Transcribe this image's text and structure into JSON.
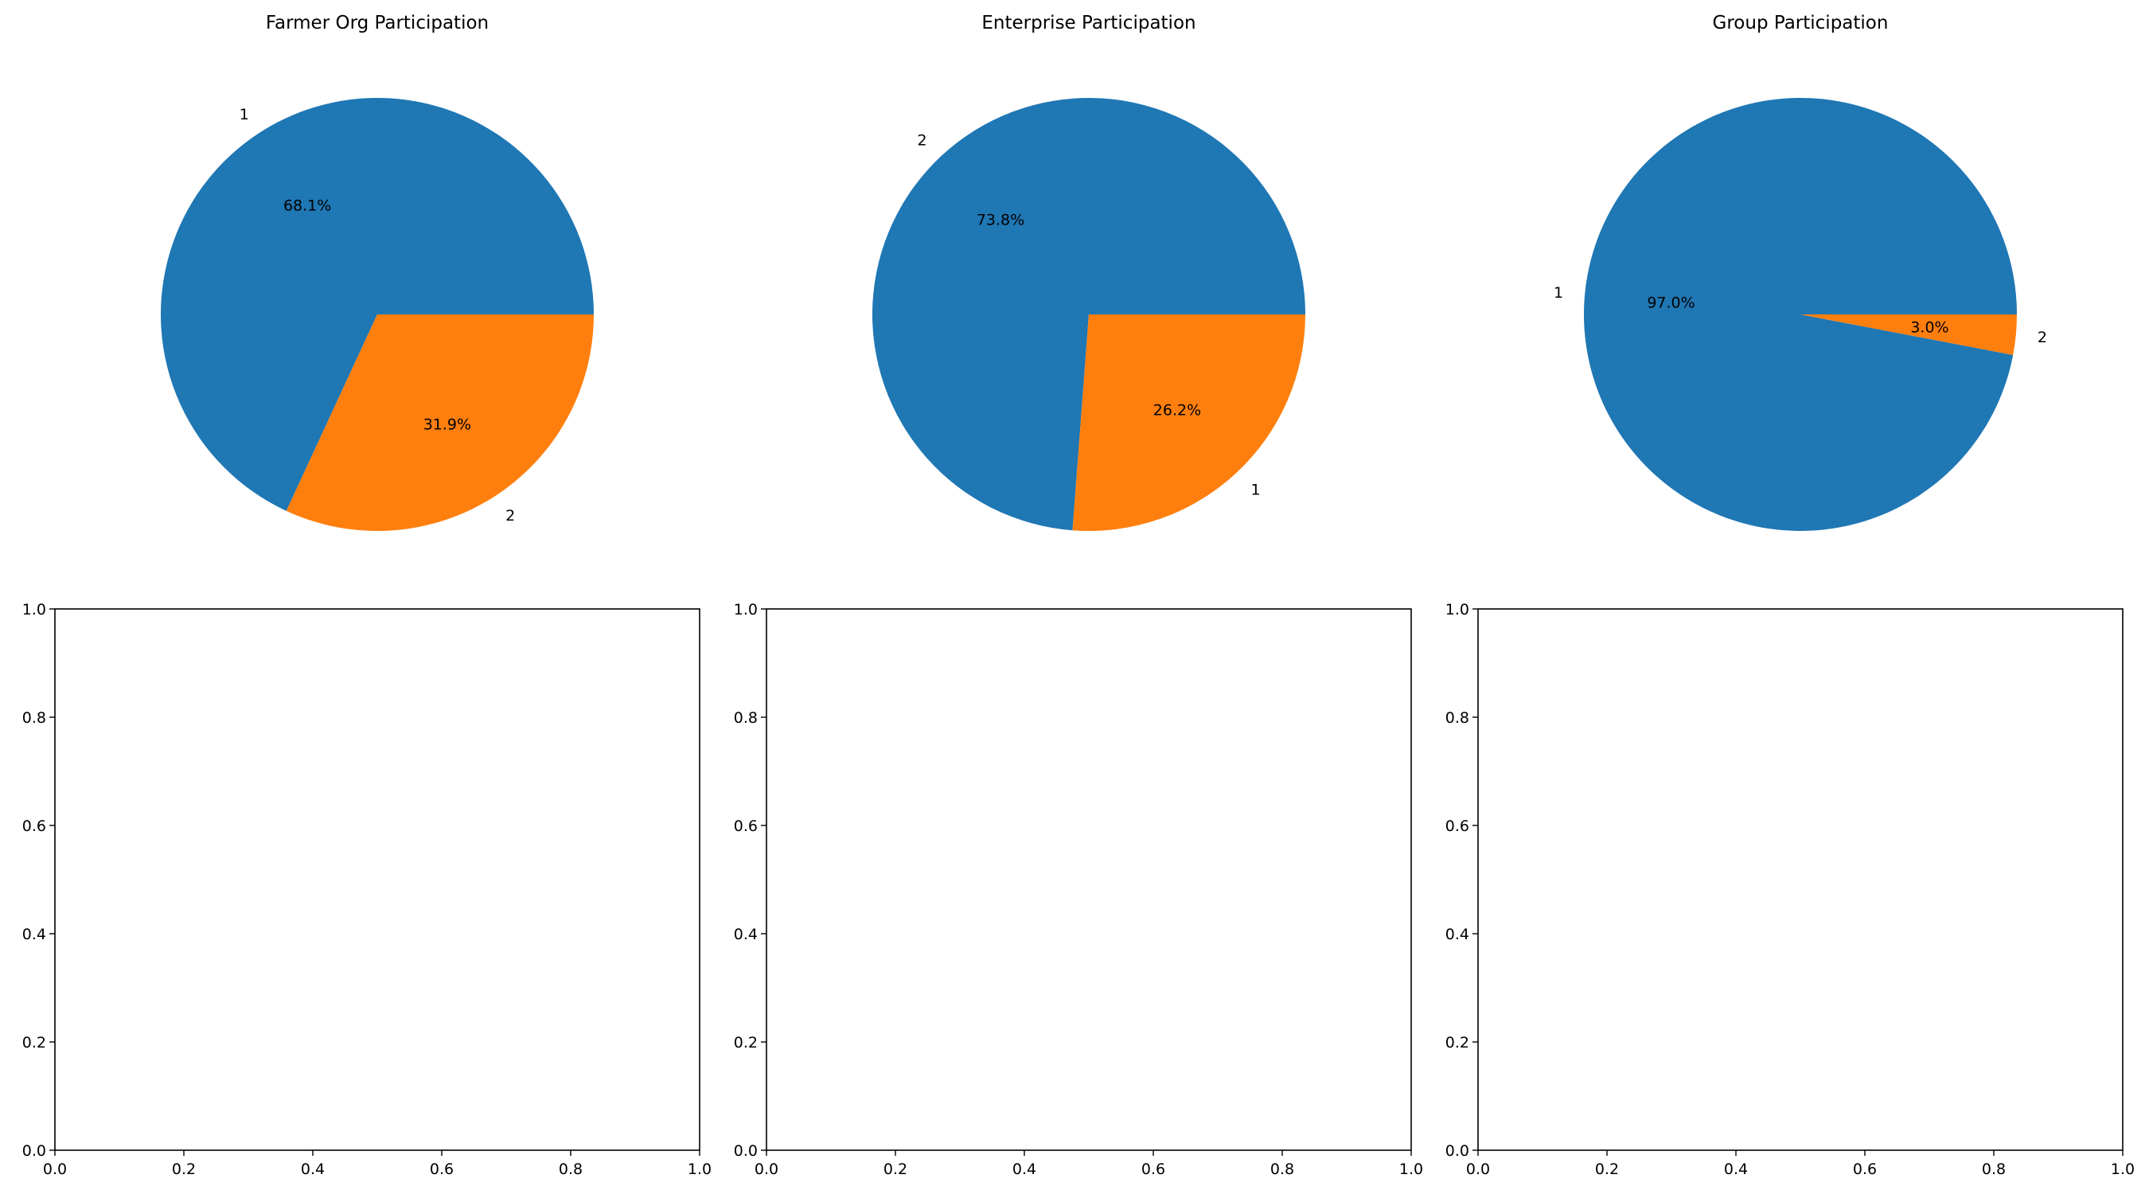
{
  "chart_data": [
    {
      "type": "pie",
      "title": "Farmer Org Participation",
      "colors": [
        "#1f77b4",
        "#ff7f0e"
      ],
      "slices": [
        {
          "label": "1",
          "pct_label": "68.1%",
          "value": 68.1
        },
        {
          "label": "2",
          "pct_label": "31.9%",
          "value": 31.9
        }
      ],
      "start_angle_deg": 0,
      "direction": "counterclockwise"
    },
    {
      "type": "pie",
      "title": "Enterprise Participation",
      "colors": [
        "#1f77b4",
        "#ff7f0e"
      ],
      "slices": [
        {
          "label": "2",
          "pct_label": "73.8%",
          "value": 73.8
        },
        {
          "label": "1",
          "pct_label": "26.2%",
          "value": 26.2
        }
      ],
      "start_angle_deg": 0,
      "direction": "counterclockwise"
    },
    {
      "type": "pie",
      "title": "Group Participation",
      "colors": [
        "#1f77b4",
        "#ff7f0e"
      ],
      "slices": [
        {
          "label": "1",
          "pct_label": "97.0%",
          "value": 97.0
        },
        {
          "label": "2",
          "pct_label": "3.0%",
          "value": 3.0
        }
      ],
      "start_angle_deg": 0,
      "direction": "counterclockwise"
    },
    {
      "type": "scatter",
      "title": "",
      "xlim": [
        0,
        1
      ],
      "ylim": [
        0,
        1
      ],
      "xticks": [
        "0.0",
        "0.2",
        "0.4",
        "0.6",
        "0.8",
        "1.0"
      ],
      "yticks": [
        "0.0",
        "0.2",
        "0.4",
        "0.6",
        "0.8",
        "1.0"
      ],
      "series": []
    },
    {
      "type": "scatter",
      "title": "",
      "xlim": [
        0,
        1
      ],
      "ylim": [
        0,
        1
      ],
      "xticks": [
        "0.0",
        "0.2",
        "0.4",
        "0.6",
        "0.8",
        "1.0"
      ],
      "yticks": [
        "0.0",
        "0.2",
        "0.4",
        "0.6",
        "0.8",
        "1.0"
      ],
      "series": []
    },
    {
      "type": "scatter",
      "title": "",
      "xlim": [
        0,
        1
      ],
      "ylim": [
        0,
        1
      ],
      "xticks": [
        "0.0",
        "0.2",
        "0.4",
        "0.6",
        "0.8",
        "1.0"
      ],
      "yticks": [
        "0.0",
        "0.2",
        "0.4",
        "0.6",
        "0.8",
        "1.0"
      ],
      "series": []
    }
  ]
}
